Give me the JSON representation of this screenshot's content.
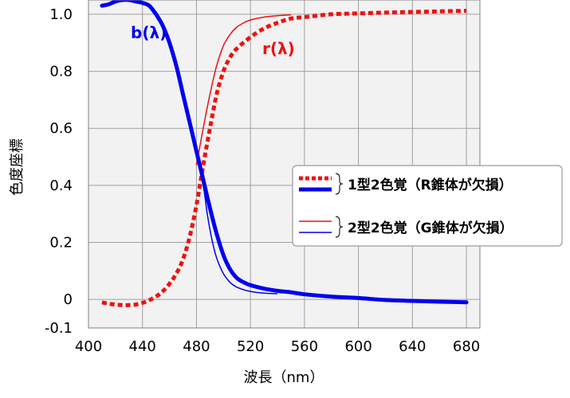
{
  "chart_data": {
    "type": "line",
    "title": "",
    "xlabel": "波長（nm）",
    "ylabel": "色度座標",
    "xlim": [
      400,
      690
    ],
    "ylim": [
      -0.1,
      1.05
    ],
    "grid": true,
    "x_ticks": [
      "400",
      "440",
      "480",
      "520",
      "560",
      "600",
      "640",
      "680"
    ],
    "y_ticks": [
      "1.0",
      "0.8",
      "0.6",
      "0.4",
      "0.2",
      "0",
      "-0.1"
    ],
    "legend_position": "right",
    "legend": [
      {
        "label": "1型2色覚（R錐体が欠損）",
        "style": "thick"
      },
      {
        "label": "2型2色覚（G錐体が欠損）",
        "style": "thin"
      }
    ],
    "annotations": [
      {
        "text": "b(λ)",
        "color": "#0000ee"
      },
      {
        "text": "r(λ)",
        "color": "#ee1111"
      }
    ],
    "colors": {
      "b": "#0000ee",
      "r": "#ee1111",
      "plot_bg": "#f2f2f2",
      "grid": "#a0a0a0"
    },
    "series": [
      {
        "variant": "protan",
        "curve": "b",
        "style": "thick",
        "x": [
          410,
          415,
          420,
          425,
          430,
          435,
          440,
          445,
          450,
          455,
          460,
          465,
          470,
          475,
          480,
          485,
          490,
          495,
          500,
          505,
          510,
          515,
          520,
          530,
          540,
          550,
          560,
          580,
          600,
          620,
          640,
          660,
          680
        ],
        "y": [
          1.03,
          1.035,
          1.045,
          1.05,
          1.05,
          1.045,
          1.04,
          1.03,
          1.0,
          0.96,
          0.9,
          0.82,
          0.72,
          0.62,
          0.52,
          0.42,
          0.32,
          0.23,
          0.155,
          0.105,
          0.075,
          0.06,
          0.05,
          0.038,
          0.03,
          0.025,
          0.018,
          0.01,
          0.005,
          -0.002,
          -0.005,
          -0.008,
          -0.01
        ]
      },
      {
        "variant": "protan",
        "curve": "r",
        "style": "thick",
        "x": [
          410,
          415,
          420,
          425,
          430,
          435,
          440,
          445,
          450,
          455,
          460,
          465,
          470,
          475,
          480,
          485,
          490,
          495,
          500,
          505,
          510,
          520,
          530,
          540,
          550,
          560,
          580,
          600,
          620,
          640,
          660,
          680
        ],
        "y": [
          -0.01,
          -0.015,
          -0.018,
          -0.02,
          -0.02,
          -0.018,
          -0.012,
          -0.003,
          0.01,
          0.028,
          0.055,
          0.09,
          0.14,
          0.22,
          0.33,
          0.47,
          0.6,
          0.72,
          0.8,
          0.85,
          0.88,
          0.92,
          0.95,
          0.97,
          0.985,
          0.99,
          1.0,
          1.003,
          1.006,
          1.008,
          1.01,
          1.012
        ]
      },
      {
        "variant": "deutan",
        "curve": "b",
        "style": "thin",
        "x": [
          480,
          485,
          488,
          491,
          494,
          497,
          500,
          503,
          506,
          510,
          515,
          520,
          530,
          540
        ],
        "y": [
          0.51,
          0.4,
          0.3,
          0.22,
          0.16,
          0.12,
          0.09,
          0.07,
          0.055,
          0.043,
          0.034,
          0.028,
          0.022,
          0.02
        ]
      },
      {
        "variant": "deutan",
        "curve": "r",
        "style": "thin",
        "x": [
          480,
          485,
          490,
          495,
          500,
          505,
          510,
          515,
          520,
          530,
          540,
          550
        ],
        "y": [
          0.47,
          0.6,
          0.72,
          0.82,
          0.89,
          0.93,
          0.955,
          0.97,
          0.98,
          0.99,
          0.995,
          0.998
        ]
      }
    ]
  }
}
